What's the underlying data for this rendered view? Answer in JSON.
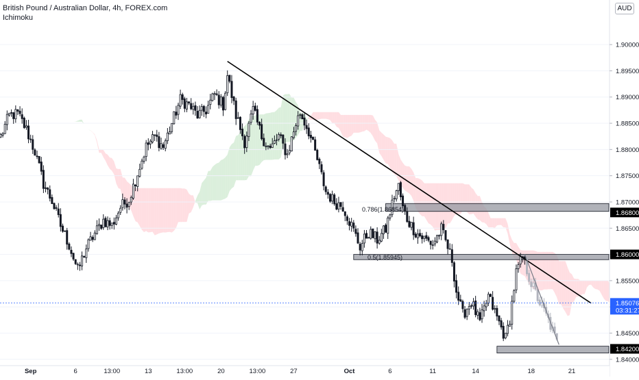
{
  "chart_data": {
    "type": "candlestick",
    "title": "British Pound / Australian Dollar, 4h, FOREX.com",
    "indicator": "Ichimoku",
    "currency": "AUD",
    "ylim": [
      1.8388,
      1.9085
    ],
    "y_ticks": [
      "1.90000",
      "1.89500",
      "1.89000",
      "1.88500",
      "1.88000",
      "1.87500",
      "1.87000",
      "1.86500",
      "1.86000",
      "1.85500",
      "1.85000",
      "1.84500",
      "1.84000"
    ],
    "x_ticks": [
      "Sep",
      "6",
      "13:00",
      "13",
      "13:00",
      "20",
      "13:00",
      "27",
      "Oct",
      "6",
      "11",
      "14",
      "18",
      "21"
    ],
    "current_price": {
      "label": "1.85076",
      "countdown": "03:31:27",
      "value": 1.85076
    },
    "level_labels": [
      {
        "label": "1.86800",
        "value": 1.868
      },
      {
        "label": "1.86000",
        "value": 1.86
      },
      {
        "label": "1.84200",
        "value": 1.842
      }
    ],
    "annotations": [
      {
        "text": "0.786(1.86854)",
        "value": 1.86854
      },
      {
        "text": "0.5(1.85945)",
        "value": 1.85945
      }
    ],
    "anchors": [
      [
        0,
        1.8825
      ],
      [
        4,
        1.8865
      ],
      [
        8,
        1.8868
      ],
      [
        12,
        1.8838
      ],
      [
        16,
        1.8796
      ],
      [
        20,
        1.8735
      ],
      [
        24,
        1.8702
      ],
      [
        28,
        1.8655
      ],
      [
        32,
        1.8618
      ],
      [
        36,
        1.857
      ],
      [
        40,
        1.8612
      ],
      [
        44,
        1.864
      ],
      [
        48,
        1.8665
      ],
      [
        52,
        1.8655
      ],
      [
        56,
        1.869
      ],
      [
        60,
        1.8705
      ],
      [
        64,
        1.8755
      ],
      [
        68,
        1.8805
      ],
      [
        72,
        1.8825
      ],
      [
        76,
        1.8805
      ],
      [
        80,
        1.885
      ],
      [
        84,
        1.8895
      ],
      [
        88,
        1.8885
      ],
      [
        92,
        1.8865
      ],
      [
        96,
        1.8875
      ],
      [
        100,
        1.8905
      ],
      [
        104,
        1.8885
      ],
      [
        106,
        1.8942
      ],
      [
        110,
        1.8865
      ],
      [
        114,
        1.8815
      ],
      [
        118,
        1.8875
      ],
      [
        122,
        1.8825
      ],
      [
        126,
        1.88
      ],
      [
        130,
        1.8825
      ],
      [
        134,
        1.879
      ],
      [
        138,
        1.885
      ],
      [
        140,
        1.887
      ],
      [
        144,
        1.8835
      ],
      [
        148,
        1.878
      ],
      [
        152,
        1.872
      ],
      [
        156,
        1.87
      ],
      [
        160,
        1.8692
      ],
      [
        164,
        1.8655
      ],
      [
        168,
        1.8615
      ],
      [
        172,
        1.8642
      ],
      [
        176,
        1.8628
      ],
      [
        180,
        1.8648
      ],
      [
        184,
        1.8712
      ],
      [
        186,
        1.873
      ],
      [
        188,
        1.8688
      ],
      [
        190,
        1.8668
      ],
      [
        194,
        1.8642
      ],
      [
        198,
        1.863
      ],
      [
        202,
        1.862
      ],
      [
        206,
        1.8648
      ],
      [
        208,
        1.8625
      ],
      [
        211,
        1.859
      ],
      [
        213,
        1.853
      ],
      [
        216,
        1.8485
      ],
      [
        220,
        1.851
      ],
      [
        224,
        1.847
      ],
      [
        228,
        1.852
      ],
      [
        232,
        1.848
      ],
      [
        236,
        1.844
      ],
      [
        238,
        1.8478
      ],
      [
        241,
        1.8565
      ],
      [
        244,
        1.8595
      ],
      [
        248,
        1.8545
      ],
      [
        252,
        1.8508
      ],
      [
        256,
        1.8475
      ],
      [
        260,
        1.8432
      ]
    ],
    "candles_ghost_from": 246,
    "ichimoku_cloud_lag": 26,
    "ichimoku_cloud_period_a": 9,
    "ichimoku_cloud_period_b": 26,
    "bars_per_day": 6,
    "trendline": {
      "from": [
        106,
        1.8968
      ],
      "to": [
        276,
        1.8507
      ]
    },
    "short_trendline": {
      "from": [
        245,
        1.86
      ],
      "to": [
        261,
        1.8428
      ]
    },
    "zones": [
      {
        "from": 180,
        "to": 290,
        "top": 1.8697,
        "bottom": 1.8682
      },
      {
        "from": 165,
        "to": 290,
        "top": 1.86,
        "bottom": 1.859
      },
      {
        "from": 232,
        "to": 290,
        "top": 1.8425,
        "bottom": 1.8412
      }
    ],
    "colors": {
      "candle": "#131722",
      "ghost_candle": "#b2b5be",
      "cloud_bull": "#c8e6c9",
      "cloud_bear": "#ffcdd2",
      "trendline": "#000000",
      "zone": "#9598a1",
      "price_dashed": "#2962ff",
      "price_label_bg": "#2962ff",
      "level_label_bg": "#000000"
    }
  }
}
